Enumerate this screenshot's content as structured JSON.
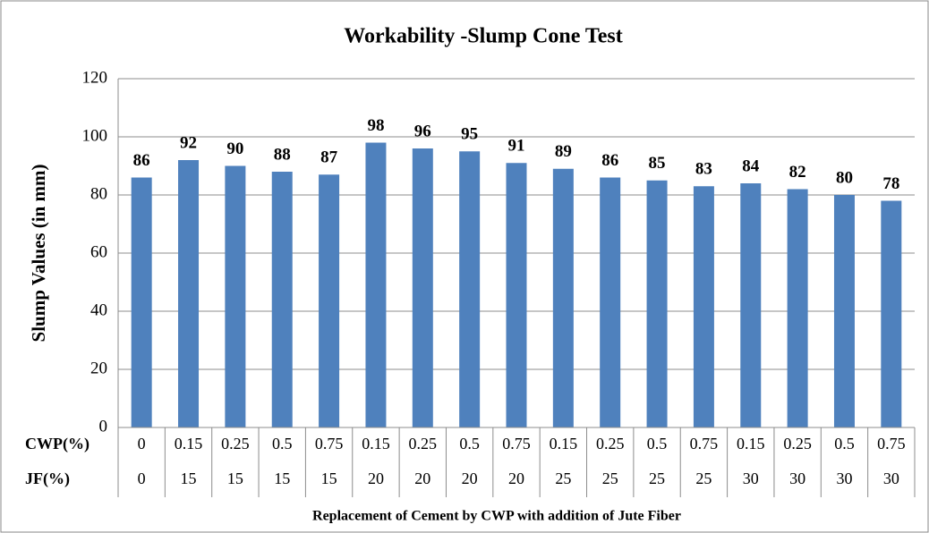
{
  "chart_data": {
    "type": "bar",
    "title": "Workability -Slump Cone Test",
    "ylabel": "Slump Values (in mm)",
    "xlabel": "Replacement of Cement by CWP with addition of Jute Fiber",
    "category_rows": [
      {
        "name": "CWP(%)",
        "labels": [
          "0",
          "0.15",
          "0.25",
          "0.5",
          "0.75",
          "0.15",
          "0.25",
          "0.5",
          "0.75",
          "0.15",
          "0.25",
          "0.5",
          "0.75",
          "0.15",
          "0.25",
          "0.5",
          "0.75"
        ]
      },
      {
        "name": "JF(%)",
        "labels": [
          "0",
          "15",
          "15",
          "15",
          "15",
          "20",
          "20",
          "20",
          "20",
          "25",
          "25",
          "25",
          "25",
          "30",
          "30",
          "30",
          "30"
        ]
      }
    ],
    "values": [
      86,
      92,
      90,
      88,
      87,
      98,
      96,
      95,
      91,
      89,
      86,
      85,
      83,
      84,
      82,
      80,
      78
    ],
    "color": "#4f81bd",
    "ylim": [
      0,
      120
    ],
    "yticks": [
      0,
      20,
      40,
      60,
      80,
      100,
      120
    ],
    "grid": true
  }
}
